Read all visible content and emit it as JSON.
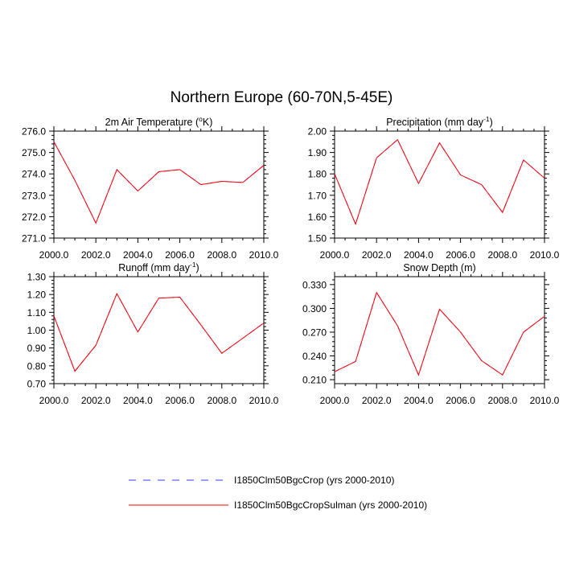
{
  "figure": {
    "title": "Northern Europe (60-70N,5-45E)"
  },
  "legend": [
    {
      "label": "I1850Clm50BgcCrop (yrs 2000-2010)",
      "color": "#3b3bff",
      "dash": true
    },
    {
      "label": "I1850Clm50BgcCropSulman (yrs 2000-2010)",
      "color": "#ff0000",
      "dash": false
    }
  ],
  "chart_data": [
    {
      "type": "line",
      "title": "2m Air Temperature (",
      "title_sup": "o",
      "title_tail": "K)",
      "xlim": [
        2000,
        2010
      ],
      "ylim": [
        271,
        276
      ],
      "x_ticks": [
        "2000.0",
        "2002.0",
        "2004.0",
        "2006.0",
        "2008.0",
        "2010.0"
      ],
      "y_ticks": [
        "271.0",
        "272.0",
        "273.0",
        "274.0",
        "275.0",
        "276.0"
      ],
      "x": [
        2000,
        2001,
        2002,
        2003,
        2004,
        2005,
        2006,
        2007,
        2008,
        2009,
        2010
      ],
      "series": [
        {
          "name": "I1850Clm50BgcCrop (yrs 2000-2010)",
          "values": [
            275.5,
            273.7,
            271.7,
            274.2,
            273.2,
            274.1,
            274.2,
            273.5,
            273.65,
            273.6,
            274.4
          ]
        },
        {
          "name": "I1850Clm50BgcCropSulman (yrs 2000-2010)",
          "values": [
            275.5,
            273.7,
            271.7,
            274.2,
            273.2,
            274.1,
            274.2,
            273.5,
            273.65,
            273.6,
            274.4
          ]
        }
      ]
    },
    {
      "type": "line",
      "title": "Precipitation (mm day",
      "title_sup": "-1",
      "title_tail": ")",
      "xlim": [
        2000,
        2010
      ],
      "ylim": [
        1.5,
        2.0
      ],
      "x_ticks": [
        "2000.0",
        "2002.0",
        "2004.0",
        "2006.0",
        "2008.0",
        "2010.0"
      ],
      "y_ticks": [
        "1.50",
        "1.60",
        "1.70",
        "1.80",
        "1.90",
        "2.00"
      ],
      "x": [
        2000,
        2001,
        2002,
        2003,
        2004,
        2005,
        2006,
        2007,
        2008,
        2009,
        2010
      ],
      "series": [
        {
          "name": "I1850Clm50BgcCrop (yrs 2000-2010)",
          "values": [
            1.8,
            1.565,
            1.875,
            1.96,
            1.755,
            1.945,
            1.795,
            1.75,
            1.62,
            1.865,
            1.78
          ]
        },
        {
          "name": "I1850Clm50BgcCropSulman (yrs 2000-2010)",
          "values": [
            1.8,
            1.565,
            1.875,
            1.96,
            1.755,
            1.945,
            1.795,
            1.75,
            1.62,
            1.865,
            1.78
          ]
        }
      ]
    },
    {
      "type": "line",
      "title": "Runoff (mm day",
      "title_sup": "-1",
      "title_tail": ")",
      "xlim": [
        2000,
        2010
      ],
      "ylim": [
        0.7,
        1.3
      ],
      "x_ticks": [
        "2000.0",
        "2002.0",
        "2004.0",
        "2006.0",
        "2008.0",
        "2010.0"
      ],
      "y_ticks": [
        "0.70",
        "0.80",
        "0.90",
        "1.00",
        "1.10",
        "1.20",
        "1.30"
      ],
      "x": [
        2000,
        2001,
        2002,
        2003,
        2004,
        2005,
        2006,
        2007,
        2008,
        2009,
        2010
      ],
      "series": [
        {
          "name": "I1850Clm50BgcCrop (yrs 2000-2010)",
          "values": [
            1.08,
            0.77,
            0.915,
            1.205,
            0.99,
            1.18,
            1.185,
            1.03,
            0.87,
            0.955,
            1.04
          ]
        },
        {
          "name": "I1850Clm50BgcCropSulman (yrs 2000-2010)",
          "values": [
            1.08,
            0.77,
            0.915,
            1.205,
            0.99,
            1.18,
            1.185,
            1.03,
            0.87,
            0.955,
            1.04
          ]
        }
      ]
    },
    {
      "type": "line",
      "title": "Snow Depth (m)",
      "title_sup": "",
      "title_tail": "",
      "xlim": [
        2000,
        2010
      ],
      "ylim": [
        0.205,
        0.34
      ],
      "x_ticks": [
        "2000.0",
        "2002.0",
        "2004.0",
        "2006.0",
        "2008.0",
        "2010.0"
      ],
      "y_ticks": [
        "0.210",
        "0.240",
        "0.270",
        "0.300",
        "0.330"
      ],
      "x": [
        2000,
        2001,
        2002,
        2003,
        2004,
        2005,
        2006,
        2007,
        2008,
        2009,
        2010
      ],
      "series": [
        {
          "name": "I1850Clm50BgcCrop (yrs 2000-2010)",
          "values": [
            0.22,
            0.233,
            0.32,
            0.278,
            0.216,
            0.299,
            0.27,
            0.234,
            0.216,
            0.27,
            0.29
          ]
        },
        {
          "name": "I1850Clm50BgcCropSulman (yrs 2000-2010)",
          "values": [
            0.22,
            0.233,
            0.32,
            0.278,
            0.216,
            0.299,
            0.27,
            0.234,
            0.216,
            0.27,
            0.29
          ]
        }
      ]
    }
  ]
}
